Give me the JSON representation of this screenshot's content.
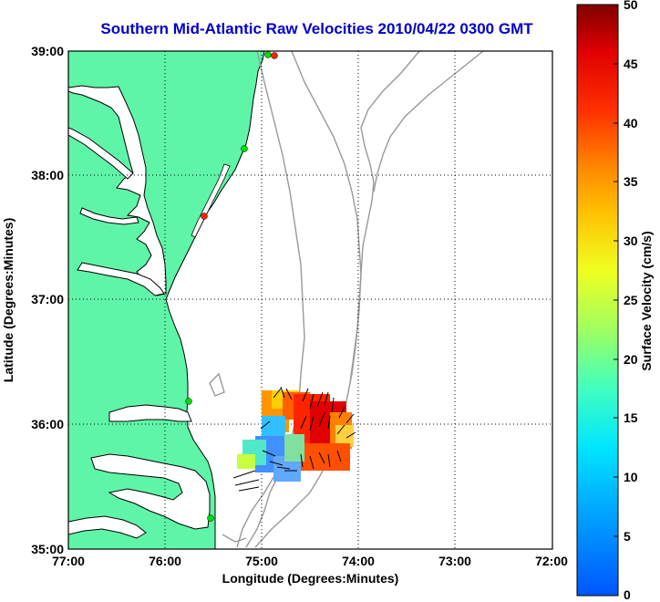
{
  "title": "Southern Mid-Atlantic Raw Velocities 2010/04/22 0300 GMT",
  "xlabel": "Longitude (Degrees:Minutes)",
  "ylabel": "Latitude (Degrees:Minutes)",
  "x_ticks": [
    "77:00",
    "76:00",
    "75:00",
    "74:00",
    "73:00",
    "72:00"
  ],
  "y_ticks": [
    "39:00",
    "38:00",
    "37:00",
    "36:00",
    "35:00"
  ],
  "colorbar": {
    "label": "Surface Velocity (cm/s)",
    "ticks": [
      "50",
      "45",
      "40",
      "35",
      "30",
      "25",
      "20",
      "15",
      "10",
      "5",
      "0"
    ],
    "range": [
      0,
      50
    ],
    "colormap": "jet"
  },
  "colors": {
    "land": "#5ff5a8",
    "coastline": "#000000",
    "bathymetry": "#999999",
    "title": "#0000cc",
    "station_active": "#00dd00",
    "station_inactive": "#ff2200"
  },
  "map": {
    "lon_range": [
      -77,
      -72
    ],
    "lat_range": [
      35,
      39
    ],
    "grid": true
  },
  "stations": [
    {
      "status": "active",
      "lon": -74.85,
      "lat": 38.93
    },
    {
      "status": "active",
      "lon": -75.18,
      "lat": 38.22
    },
    {
      "status": "inactive",
      "lon": -75.5,
      "lat": 37.67
    },
    {
      "status": "active",
      "lon": -75.75,
      "lat": 36.18
    },
    {
      "status": "active",
      "lon": -75.46,
      "lat": 35.26
    }
  ]
}
